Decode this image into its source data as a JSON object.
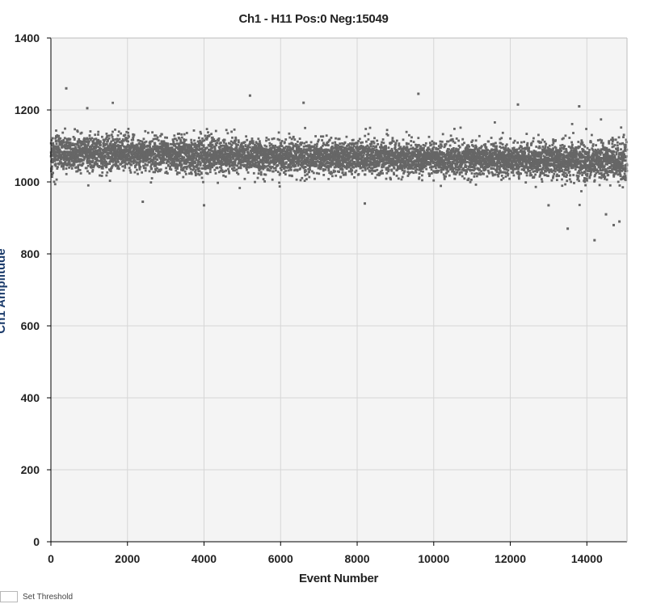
{
  "chart_data": {
    "type": "scatter",
    "title": "Ch1 - H11 Pos:0 Neg:15049",
    "xlabel": "Event Number",
    "ylabel": "Ch1 Amplitude",
    "xlim": [
      0,
      15049
    ],
    "ylim": [
      0,
      1400
    ],
    "xticks": [
      0,
      2000,
      4000,
      6000,
      8000,
      10000,
      12000,
      14000
    ],
    "yticks": [
      0,
      200,
      400,
      600,
      800,
      1000,
      1200,
      1400
    ],
    "grid": true,
    "series": [
      {
        "n_points": 15049,
        "color": "#666666",
        "band": {
          "x": [
            0,
            2000,
            4000,
            6000,
            8000,
            10000,
            12000,
            14000,
            15049
          ],
          "center": [
            1080,
            1080,
            1075,
            1070,
            1068,
            1065,
            1062,
            1058,
            1055
          ],
          "spread": [
            45,
            42,
            42,
            42,
            40,
            40,
            40,
            45,
            48
          ]
        },
        "outliers": [
          {
            "x": 400,
            "y": 1260
          },
          {
            "x": 9600,
            "y": 1245
          },
          {
            "x": 5200,
            "y": 1240
          },
          {
            "x": 13800,
            "y": 1210
          },
          {
            "x": 12200,
            "y": 1215
          },
          {
            "x": 6600,
            "y": 1220
          },
          {
            "x": 950,
            "y": 1205
          },
          {
            "x": 4000,
            "y": 935
          },
          {
            "x": 13500,
            "y": 870
          },
          {
            "x": 14200,
            "y": 838
          },
          {
            "x": 14700,
            "y": 880
          },
          {
            "x": 14500,
            "y": 910
          },
          {
            "x": 14850,
            "y": 890
          },
          {
            "x": 2400,
            "y": 945
          },
          {
            "x": 8200,
            "y": 940
          },
          {
            "x": 13000,
            "y": 935
          }
        ]
      }
    ]
  },
  "controls": {
    "threshold_label": "Set Threshold"
  },
  "colors": {
    "plot_bg": "#f4f4f4",
    "grid": "#d6d6d6",
    "axis": "#000000"
  }
}
